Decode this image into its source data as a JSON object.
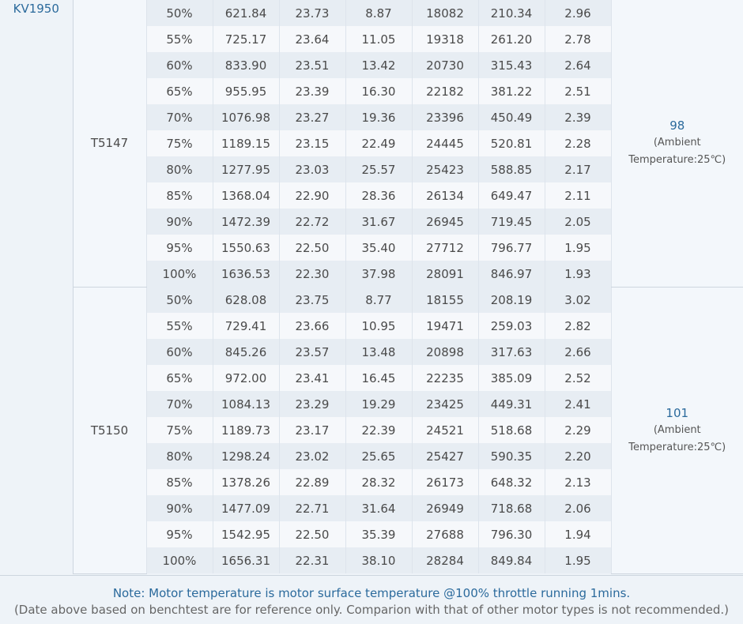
{
  "kv": "KV1950",
  "groups": [
    {
      "prop": "T5147",
      "temp_value": "98",
      "temp_note_1": "(Ambient",
      "temp_note_2": "Temperature:25℃)",
      "rows": [
        [
          "50%",
          "621.84",
          "23.73",
          "8.87",
          "18082",
          "210.34",
          "2.96"
        ],
        [
          "55%",
          "725.17",
          "23.64",
          "11.05",
          "19318",
          "261.20",
          "2.78"
        ],
        [
          "60%",
          "833.90",
          "23.51",
          "13.42",
          "20730",
          "315.43",
          "2.64"
        ],
        [
          "65%",
          "955.95",
          "23.39",
          "16.30",
          "22182",
          "381.22",
          "2.51"
        ],
        [
          "70%",
          "1076.98",
          "23.27",
          "19.36",
          "23396",
          "450.49",
          "2.39"
        ],
        [
          "75%",
          "1189.15",
          "23.15",
          "22.49",
          "24445",
          "520.81",
          "2.28"
        ],
        [
          "80%",
          "1277.95",
          "23.03",
          "25.57",
          "25423",
          "588.85",
          "2.17"
        ],
        [
          "85%",
          "1368.04",
          "22.90",
          "28.36",
          "26134",
          "649.47",
          "2.11"
        ],
        [
          "90%",
          "1472.39",
          "22.72",
          "31.67",
          "26945",
          "719.45",
          "2.05"
        ],
        [
          "95%",
          "1550.63",
          "22.50",
          "35.40",
          "27712",
          "796.77",
          "1.95"
        ],
        [
          "100%",
          "1636.53",
          "22.30",
          "37.98",
          "28091",
          "846.97",
          "1.93"
        ]
      ]
    },
    {
      "prop": "T5150",
      "temp_value": "101",
      "temp_note_1": "(Ambient",
      "temp_note_2": "Temperature:25℃)",
      "rows": [
        [
          "50%",
          "628.08",
          "23.75",
          "8.77",
          "18155",
          "208.19",
          "3.02"
        ],
        [
          "55%",
          "729.41",
          "23.66",
          "10.95",
          "19471",
          "259.03",
          "2.82"
        ],
        [
          "60%",
          "845.26",
          "23.57",
          "13.48",
          "20898",
          "317.63",
          "2.66"
        ],
        [
          "65%",
          "972.00",
          "23.41",
          "16.45",
          "22235",
          "385.09",
          "2.52"
        ],
        [
          "70%",
          "1084.13",
          "23.29",
          "19.29",
          "23425",
          "449.31",
          "2.41"
        ],
        [
          "75%",
          "1189.73",
          "23.17",
          "22.39",
          "24521",
          "518.68",
          "2.29"
        ],
        [
          "80%",
          "1298.24",
          "23.02",
          "25.65",
          "25427",
          "590.35",
          "2.20"
        ],
        [
          "85%",
          "1378.26",
          "22.89",
          "28.32",
          "26173",
          "648.32",
          "2.13"
        ],
        [
          "90%",
          "1477.09",
          "22.71",
          "31.64",
          "26949",
          "718.68",
          "2.06"
        ],
        [
          "95%",
          "1542.95",
          "22.50",
          "35.39",
          "27688",
          "796.30",
          "1.94"
        ],
        [
          "100%",
          "1656.31",
          "22.31",
          "38.10",
          "28284",
          "849.84",
          "1.95"
        ]
      ]
    }
  ],
  "note_line1": "Note: Motor temperature is motor surface temperature @100% throttle running 1mins.",
  "note_line2": "(Date above based on benchtest are for reference only. Comparion with that of other motor types is not recommended.)"
}
